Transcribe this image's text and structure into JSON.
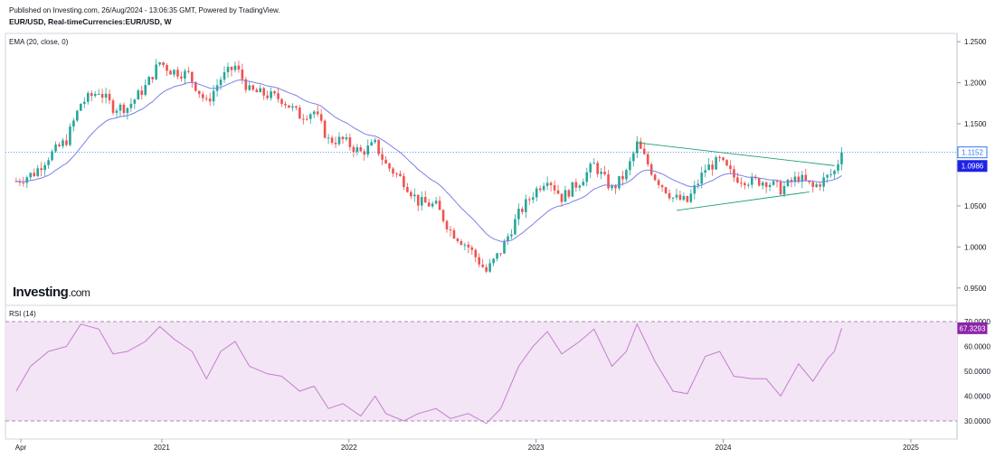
{
  "header": {
    "published": "Published on Investing.com, 26/Aug/2024 - 13:06:35 GMT, Powered by TradingView.",
    "symbol": "EUR/USD, Real-timeCurrencies:EUR/USD, W"
  },
  "logo": {
    "brand": "Investing",
    "domain": ".com"
  },
  "colors": {
    "up": "#26a69a",
    "down": "#ef5350",
    "ema": "#7b7fe8",
    "rsi": "#c47fd0",
    "rsi_band": "#f3e5f5",
    "price_line": "#3179f5",
    "ema_tag": "#1e22e6",
    "rsi_tag": "#8e24aa",
    "trendline": "#1f9e7a"
  },
  "chart_data": [
    {
      "type": "candlestick",
      "title": "EUR/USD, Real-timeCurrencies:EUR/USD, W",
      "indicator": "EMA (20, close, 0)",
      "y_ticks": [
        "1.2500",
        "1.2000",
        "1.1500",
        "1.1000",
        "1.0500",
        "1.0000",
        "0.9500"
      ],
      "ylim": [
        0.93,
        1.26
      ],
      "x_ticks": [
        "Apr",
        "2021",
        "2022",
        "2023",
        "2024",
        "2025"
      ],
      "last_price": "1.1152",
      "ema_value": "1.0986",
      "grid": false,
      "trendlines": [
        {
          "from": [
            "2023-07-17",
            1.127
          ],
          "to": [
            "2024-08-05",
            1.099
          ]
        },
        {
          "from": [
            "2023-10-02",
            1.0445
          ],
          "to": [
            "2024-06-17",
            1.067
          ]
        }
      ],
      "series_close": [
        [
          "2020-03-23",
          1.08
        ],
        [
          "2020-04-27",
          1.09
        ],
        [
          "2020-05-25",
          1.11
        ],
        [
          "2020-06-29",
          1.13
        ],
        [
          "2020-07-27",
          1.175
        ],
        [
          "2020-08-31",
          1.19
        ],
        [
          "2020-09-28",
          1.17
        ],
        [
          "2020-10-26",
          1.17
        ],
        [
          "2020-11-30",
          1.195
        ],
        [
          "2020-12-28",
          1.225
        ],
        [
          "2021-01-18",
          1.215
        ],
        [
          "2021-02-22",
          1.21
        ],
        [
          "2021-03-29",
          1.175
        ],
        [
          "2021-04-26",
          1.205
        ],
        [
          "2021-05-24",
          1.22
        ],
        [
          "2021-06-21",
          1.19
        ],
        [
          "2021-07-26",
          1.185
        ],
        [
          "2021-08-23",
          1.18
        ],
        [
          "2021-09-27",
          1.16
        ],
        [
          "2021-10-25",
          1.165
        ],
        [
          "2021-11-22",
          1.13
        ],
        [
          "2021-12-20",
          1.13
        ],
        [
          "2022-01-24",
          1.115
        ],
        [
          "2022-02-21",
          1.125
        ],
        [
          "2022-03-14",
          1.1
        ],
        [
          "2022-04-18",
          1.08
        ],
        [
          "2022-05-16",
          1.055
        ],
        [
          "2022-06-20",
          1.05
        ],
        [
          "2022-07-18",
          1.02
        ],
        [
          "2022-08-22",
          1.0
        ],
        [
          "2022-09-26",
          0.97
        ],
        [
          "2022-10-24",
          0.995
        ],
        [
          "2022-11-28",
          1.04
        ],
        [
          "2022-12-26",
          1.065
        ],
        [
          "2023-01-23",
          1.085
        ],
        [
          "2023-02-20",
          1.06
        ],
        [
          "2023-03-27",
          1.08
        ],
        [
          "2023-04-24",
          1.1
        ],
        [
          "2023-05-29",
          1.07
        ],
        [
          "2023-06-26",
          1.09
        ],
        [
          "2023-07-17",
          1.125
        ],
        [
          "2023-08-21",
          1.085
        ],
        [
          "2023-09-25",
          1.06
        ],
        [
          "2023-10-23",
          1.055
        ],
        [
          "2023-11-27",
          1.095
        ],
        [
          "2023-12-25",
          1.105
        ],
        [
          "2024-01-22",
          1.085
        ],
        [
          "2024-02-26",
          1.08
        ],
        [
          "2024-03-25",
          1.08
        ],
        [
          "2024-04-22",
          1.07
        ],
        [
          "2024-05-27",
          1.085
        ],
        [
          "2024-06-24",
          1.072
        ],
        [
          "2024-07-22",
          1.085
        ],
        [
          "2024-08-05",
          1.092
        ],
        [
          "2024-08-19",
          1.1152
        ]
      ]
    },
    {
      "type": "line",
      "indicator": "RSI (14)",
      "y_ticks": [
        "70.0000",
        "60.0000",
        "50.0000",
        "40.0000",
        "30.0000"
      ],
      "ylim": [
        26,
        73
      ],
      "bands": [
        30,
        70
      ],
      "last_value": "67.3293",
      "series": [
        [
          "2020-03-23",
          42
        ],
        [
          "2020-04-20",
          52
        ],
        [
          "2020-05-25",
          58
        ],
        [
          "2020-06-29",
          60
        ],
        [
          "2020-07-27",
          69
        ],
        [
          "2020-08-31",
          67
        ],
        [
          "2020-09-28",
          57
        ],
        [
          "2020-10-26",
          58
        ],
        [
          "2020-11-30",
          62
        ],
        [
          "2020-12-28",
          68
        ],
        [
          "2021-01-25",
          63
        ],
        [
          "2021-03-01",
          58
        ],
        [
          "2021-03-29",
          47
        ],
        [
          "2021-04-26",
          58
        ],
        [
          "2021-05-24",
          62
        ],
        [
          "2021-06-21",
          52
        ],
        [
          "2021-07-26",
          49
        ],
        [
          "2021-08-23",
          48
        ],
        [
          "2021-09-27",
          42
        ],
        [
          "2021-10-25",
          44
        ],
        [
          "2021-11-22",
          35
        ],
        [
          "2021-12-20",
          37
        ],
        [
          "2022-01-24",
          32
        ],
        [
          "2022-02-21",
          40
        ],
        [
          "2022-03-14",
          33
        ],
        [
          "2022-04-18",
          30
        ],
        [
          "2022-05-16",
          33
        ],
        [
          "2022-06-20",
          35
        ],
        [
          "2022-07-18",
          31
        ],
        [
          "2022-08-22",
          33
        ],
        [
          "2022-09-26",
          29
        ],
        [
          "2022-10-24",
          35
        ],
        [
          "2022-11-28",
          52
        ],
        [
          "2022-12-26",
          60
        ],
        [
          "2023-01-23",
          66
        ],
        [
          "2023-02-20",
          57
        ],
        [
          "2023-03-27",
          62
        ],
        [
          "2023-04-24",
          67
        ],
        [
          "2023-05-29",
          52
        ],
        [
          "2023-06-26",
          58
        ],
        [
          "2023-07-17",
          69
        ],
        [
          "2023-08-21",
          54
        ],
        [
          "2023-09-25",
          42
        ],
        [
          "2023-10-23",
          41
        ],
        [
          "2023-11-27",
          56
        ],
        [
          "2023-12-25",
          58
        ],
        [
          "2024-01-22",
          48
        ],
        [
          "2024-02-26",
          47
        ],
        [
          "2024-03-25",
          47
        ],
        [
          "2024-04-22",
          40
        ],
        [
          "2024-05-27",
          53
        ],
        [
          "2024-06-24",
          46
        ],
        [
          "2024-07-22",
          55
        ],
        [
          "2024-08-05",
          58
        ],
        [
          "2024-08-19",
          67.3293
        ]
      ]
    }
  ]
}
